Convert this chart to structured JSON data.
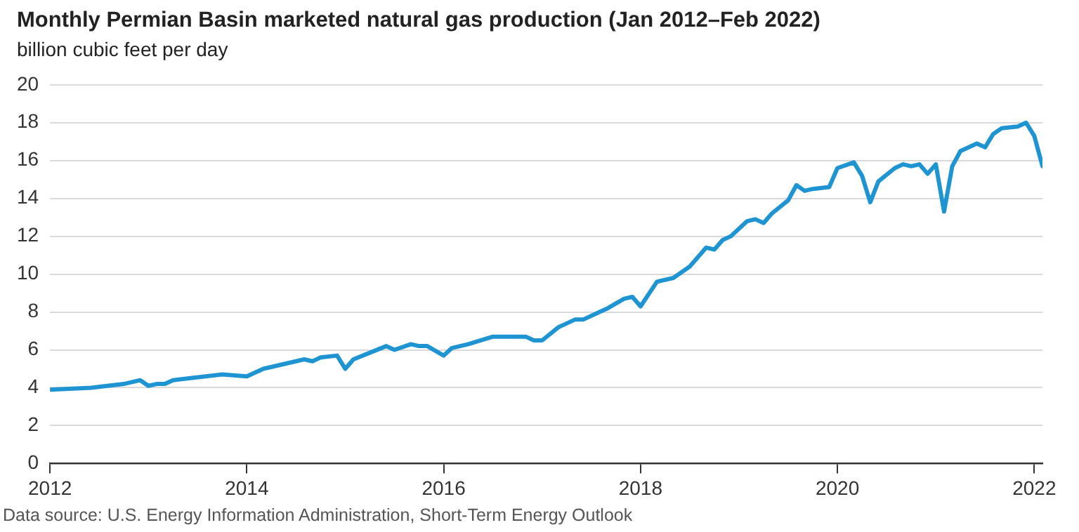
{
  "chart_data": {
    "type": "line",
    "title": "Monthly Permian Basin marketed natural gas production (Jan 2012–Feb 2022)",
    "ylabel": "billion cubic feet per day",
    "annotations": [
      "Data source: U.S. Energy Information Administration, Short-Term Energy Outlook"
    ],
    "x": [
      "2012-01",
      "2012-06",
      "2012-10",
      "2012-12",
      "2013-01",
      "2013-02",
      "2013-03",
      "2013-04",
      "2013-10",
      "2014-01",
      "2014-03",
      "2014-08",
      "2014-09",
      "2014-10",
      "2014-12",
      "2015-01",
      "2015-02",
      "2015-06",
      "2015-07",
      "2015-09",
      "2015-10",
      "2015-11",
      "2016-01",
      "2016-02",
      "2016-04",
      "2016-07",
      "2016-11",
      "2016-12",
      "2017-01",
      "2017-03",
      "2017-05",
      "2017-06",
      "2017-08",
      "2017-09",
      "2017-11",
      "2017-12",
      "2018-01",
      "2018-03",
      "2018-05",
      "2018-07",
      "2018-09",
      "2018-10",
      "2018-11",
      "2018-12",
      "2019-02",
      "2019-03",
      "2019-04",
      "2019-05",
      "2019-07",
      "2019-08",
      "2019-09",
      "2019-10",
      "2019-12",
      "2020-01",
      "2020-03",
      "2020-04",
      "2020-05",
      "2020-06",
      "2020-08",
      "2020-09",
      "2020-10",
      "2020-11",
      "2020-12",
      "2021-01",
      "2021-02",
      "2021-03",
      "2021-04",
      "2021-06",
      "2021-07",
      "2021-08",
      "2021-09",
      "2021-11",
      "2021-12",
      "2022-01",
      "2022-02"
    ],
    "series": [
      {
        "color": "#1f94d2",
        "values": [
          3.9,
          4.0,
          4.2,
          4.4,
          4.1,
          4.2,
          4.2,
          4.4,
          4.7,
          4.6,
          5.0,
          5.5,
          5.4,
          5.6,
          5.7,
          5.0,
          5.5,
          6.2,
          6.0,
          6.3,
          6.2,
          6.2,
          5.7,
          6.1,
          6.3,
          6.7,
          6.7,
          6.5,
          6.5,
          7.2,
          7.6,
          7.6,
          8.0,
          8.2,
          8.7,
          8.8,
          8.3,
          9.6,
          9.8,
          10.4,
          11.4,
          11.3,
          11.8,
          12.0,
          12.8,
          12.9,
          12.7,
          13.2,
          13.9,
          14.7,
          14.4,
          14.5,
          14.6,
          15.6,
          15.9,
          15.2,
          13.8,
          14.9,
          15.6,
          15.8,
          15.7,
          15.8,
          15.3,
          15.8,
          13.3,
          15.7,
          16.5,
          16.9,
          16.7,
          17.4,
          17.7,
          17.8,
          18.0,
          17.3,
          15.7
        ]
      }
    ],
    "xlim": [
      "2012-01",
      "2022-02"
    ],
    "xticks": [
      "2012",
      "2014",
      "2016",
      "2018",
      "2020",
      "2022"
    ],
    "ylim": [
      0,
      20
    ],
    "yticks": [
      0,
      2,
      4,
      6,
      8,
      10,
      12,
      14,
      16,
      18,
      20
    ],
    "grid": "y",
    "line_style": "solid",
    "marker": "none"
  }
}
